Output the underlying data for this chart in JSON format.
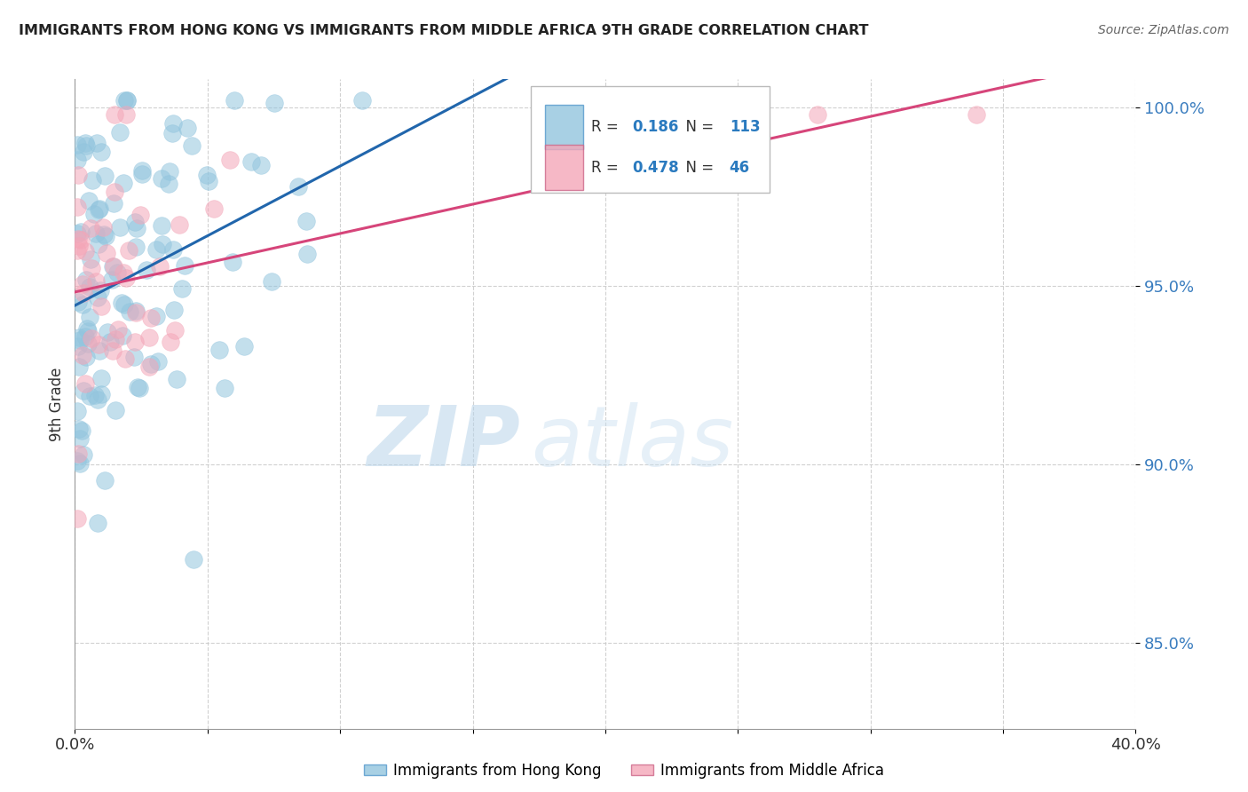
{
  "title": "IMMIGRANTS FROM HONG KONG VS IMMIGRANTS FROM MIDDLE AFRICA 9TH GRADE CORRELATION CHART",
  "source": "Source: ZipAtlas.com",
  "ylabel": "9th Grade",
  "xmin": 0.0,
  "xmax": 0.4,
  "ymin": 0.826,
  "ymax": 1.008,
  "hk_color": "#92c5de",
  "ma_color": "#f4a6b8",
  "hk_R": 0.186,
  "hk_N": 113,
  "ma_R": 0.478,
  "ma_N": 46,
  "trend_hk_color": "#2166ac",
  "trend_ma_color": "#d6457a",
  "watermark_zip": "ZIP",
  "watermark_atlas": "atlas",
  "legend_label_hk": "Immigrants from Hong Kong",
  "legend_label_ma": "Immigrants from Middle Africa"
}
